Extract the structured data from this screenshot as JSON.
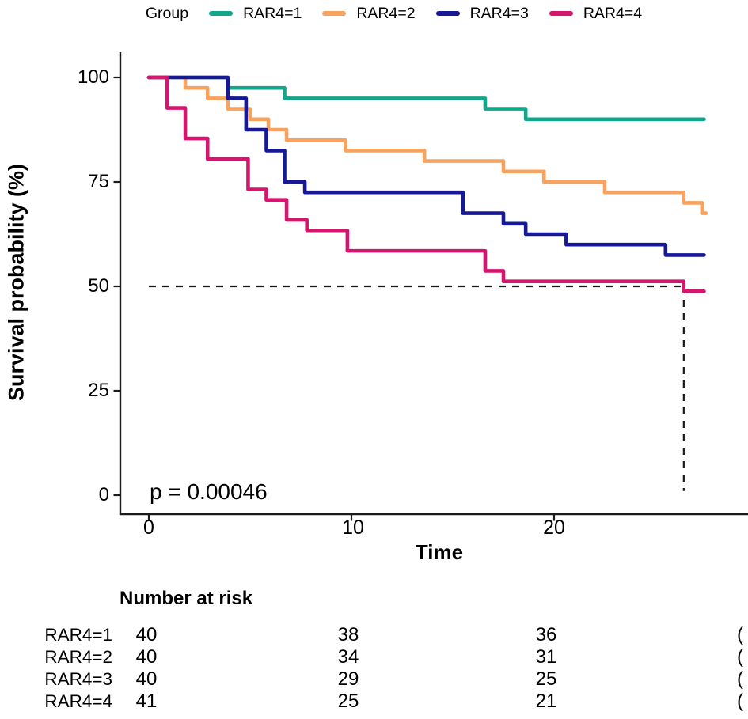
{
  "figure": {
    "background": "#ffffff"
  },
  "legend": {
    "title": "Group",
    "items": [
      {
        "label": "RAR4=1",
        "color": "#13a68c"
      },
      {
        "label": "RAR4=2",
        "color": "#f7a35f"
      },
      {
        "label": "RAR4=3",
        "color": "#171896"
      },
      {
        "label": "RAR4=4",
        "color": "#d4176e"
      }
    ]
  },
  "chart_data": {
    "type": "line",
    "subtype": "kaplan-meier-step",
    "title": "",
    "xlabel": "Time",
    "ylabel": "Survival probability (%)",
    "xticks": [
      0,
      10,
      20
    ],
    "yticks": [
      0,
      25,
      50,
      75,
      100
    ],
    "xlim": [
      0,
      29.6
    ],
    "ylim": [
      0,
      100
    ],
    "grid": false,
    "axis_color": "#1a1a1a",
    "p_value_label": "p = 0.00046",
    "median_line": {
      "survival_pct": 50,
      "time_start": 0,
      "time_cross": 26.4,
      "pct_bottom": 1,
      "color": "#1a1a1a",
      "style": "dashed"
    },
    "series": [
      {
        "name": "RAR4=1",
        "color": "#13a68c",
        "start_pct": 100,
        "steps": [
          [
            3.9,
            97.5
          ],
          [
            6.7,
            95
          ],
          [
            16.6,
            92.5
          ],
          [
            18.6,
            90
          ]
        ],
        "end_time": 27.4
      },
      {
        "name": "RAR4=2",
        "color": "#f7a35f",
        "start_pct": 100,
        "steps": [
          [
            1.8,
            97.5
          ],
          [
            2.9,
            95
          ],
          [
            3.9,
            92.5
          ],
          [
            5.0,
            90
          ],
          [
            5.9,
            87.5
          ],
          [
            6.8,
            85
          ],
          [
            9.7,
            82.5
          ],
          [
            13.6,
            80
          ],
          [
            17.5,
            77.5
          ],
          [
            19.5,
            75
          ],
          [
            22.5,
            72.5
          ],
          [
            26.4,
            70
          ],
          [
            27.3,
            67.5
          ]
        ],
        "end_time": 27.5
      },
      {
        "name": "RAR4=3",
        "color": "#171896",
        "start_pct": 100,
        "steps": [
          [
            3.9,
            95
          ],
          [
            4.8,
            87.5
          ],
          [
            5.8,
            82.5
          ],
          [
            6.7,
            75
          ],
          [
            7.7,
            72.5
          ],
          [
            15.5,
            67.5
          ],
          [
            17.5,
            65
          ],
          [
            18.6,
            62.5
          ],
          [
            20.6,
            60
          ],
          [
            25.5,
            57.5
          ]
        ],
        "end_time": 27.4
      },
      {
        "name": "RAR4=4",
        "color": "#d4176e",
        "start_pct": 100,
        "steps": [
          [
            0.9,
            92.7
          ],
          [
            1.8,
            85.4
          ],
          [
            2.9,
            80.5
          ],
          [
            4.9,
            73.2
          ],
          [
            5.8,
            70.7
          ],
          [
            6.8,
            65.9
          ],
          [
            7.8,
            63.4
          ],
          [
            9.8,
            58.5
          ],
          [
            16.6,
            53.7
          ],
          [
            17.5,
            51.2
          ],
          [
            26.4,
            48.8
          ]
        ],
        "end_time": 27.4
      }
    ]
  },
  "risk_table": {
    "title": "Number at risk",
    "time_points": [
      0,
      10,
      20
    ],
    "rows": [
      {
        "label": "RAR4=1",
        "counts": [
          40,
          38,
          36
        ],
        "clipped": "("
      },
      {
        "label": "RAR4=2",
        "counts": [
          40,
          34,
          31
        ],
        "clipped": "("
      },
      {
        "label": "RAR4=3",
        "counts": [
          40,
          29,
          25
        ],
        "clipped": "("
      },
      {
        "label": "RAR4=4",
        "counts": [
          41,
          25,
          21
        ],
        "clipped": "("
      }
    ]
  }
}
